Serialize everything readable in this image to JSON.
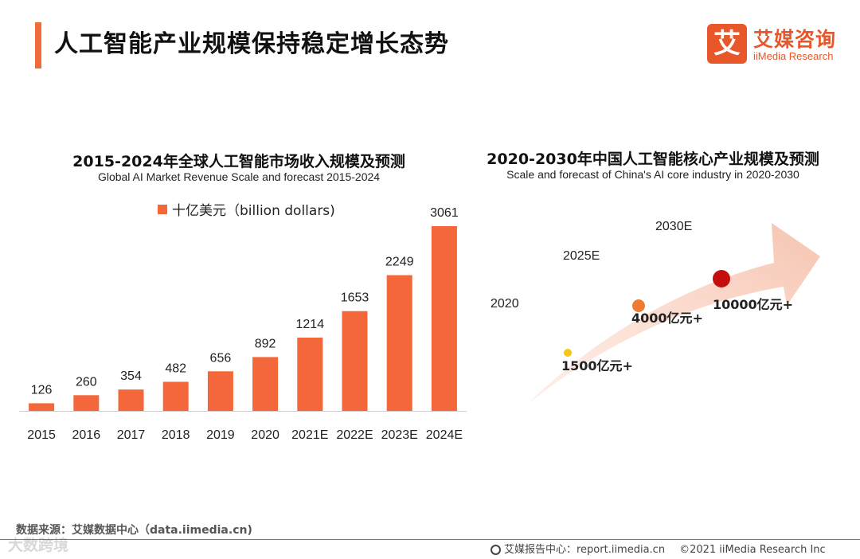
{
  "page": {
    "title": "人工智能产业规模保持稳定增长态势",
    "accent_color": "#f26b3a"
  },
  "logo": {
    "glyph": "艾",
    "name_cn": "艾媒咨询",
    "name_en": "iiMedia Research"
  },
  "chart_data": [
    {
      "type": "bar",
      "title": "2015-2024年全球人工智能市场收入规模及预测",
      "subtitle": "Global AI Market Revenue Scale and forecast 2015-2024",
      "legend": "top-left",
      "grid": false,
      "color": "#f4673a",
      "categories": [
        "2015",
        "2016",
        "2017",
        "2018",
        "2019",
        "2020",
        "2021E",
        "2022E",
        "2023E",
        "2024E"
      ],
      "series": [
        {
          "name": "十亿美元（billion dollars)",
          "values": [
            126,
            260,
            354,
            482,
            656,
            892,
            1214,
            1653,
            2249,
            3061
          ]
        }
      ],
      "ylim": [
        0,
        3061
      ]
    },
    {
      "type": "scatter",
      "title": "2020-2030年中国人工智能核心产业规模及预测",
      "subtitle": "Scale and forecast of China's AI core industry in 2020-2030",
      "grid": false,
      "points": [
        {
          "year": "2020",
          "label": "1500亿元+",
          "value": 1500,
          "color": "#f5c518"
        },
        {
          "year": "2025E",
          "label": "4000亿元+",
          "value": 4000,
          "color": "#ee7d33"
        },
        {
          "year": "2030E",
          "label": "10000亿元+",
          "value": 10000,
          "color": "#c40f0f"
        }
      ]
    }
  ],
  "footer": {
    "source": "数据来源：艾媒数据中心（data.iimedia.cn)",
    "report": "艾媒报告中心：report.iimedia.cn",
    "copyright": "©2021  iiMedia Research  Inc",
    "watermark": "大数跨境"
  }
}
